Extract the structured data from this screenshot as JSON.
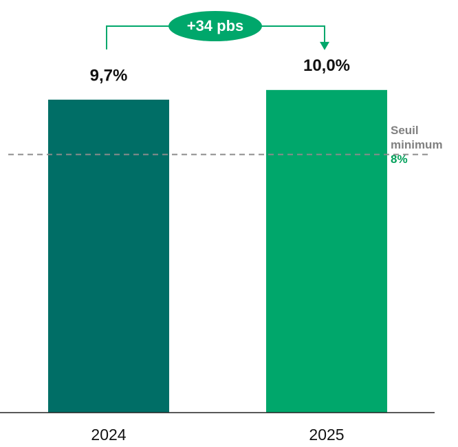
{
  "chart_data": {
    "type": "bar",
    "categories": [
      "2024",
      "2025"
    ],
    "values": [
      9.7,
      10.0
    ],
    "value_labels": [
      "9,7%",
      "10,0%"
    ],
    "colors": [
      "#006e66",
      "#00a76b"
    ],
    "ylim": [
      0,
      12
    ],
    "threshold": {
      "value": 8,
      "name": "Seuil minimum",
      "label": "8%",
      "color": "#00a05a"
    },
    "annotation": "+34 pbs",
    "annotation_color": "#00a76b"
  }
}
